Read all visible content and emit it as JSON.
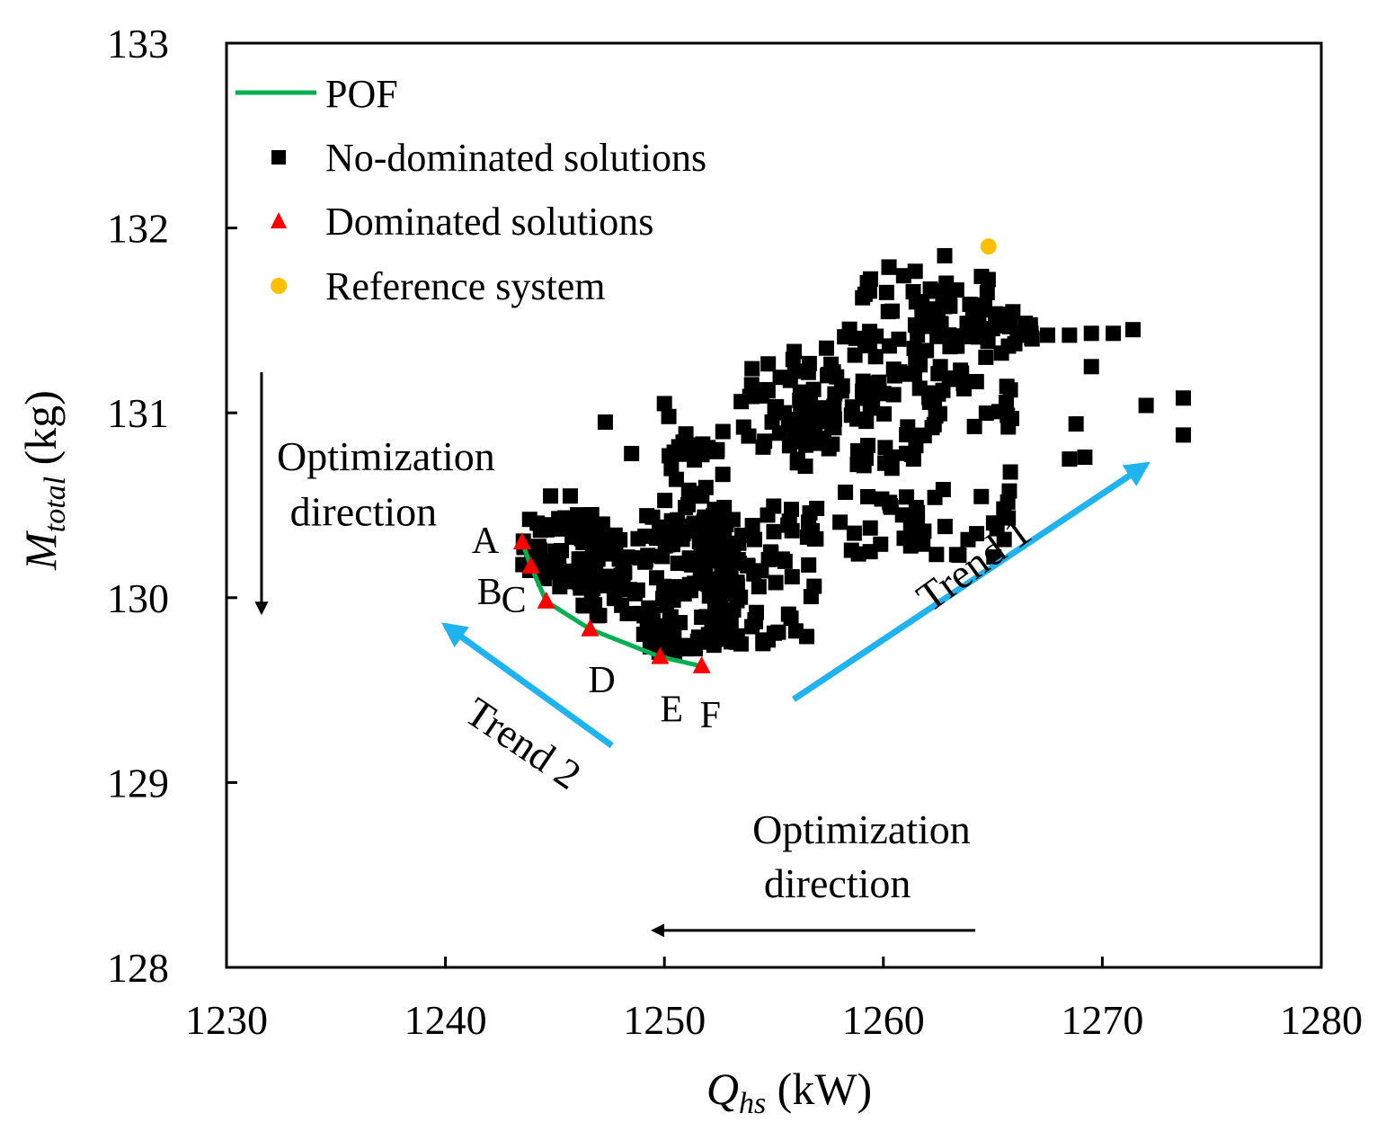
{
  "chart_data": {
    "type": "scatter",
    "xlim": [
      1230,
      1280
    ],
    "ylim": [
      128,
      133
    ],
    "x_ticks": [
      1230,
      1240,
      1250,
      1260,
      1270,
      1280
    ],
    "y_ticks": [
      128,
      129,
      130,
      131,
      132,
      133
    ],
    "x_tick_labels": [
      "1230",
      "1240",
      "1250",
      "1260",
      "1270",
      "1280"
    ],
    "y_tick_labels": [
      "128",
      "129",
      "130",
      "131",
      "132",
      "133"
    ],
    "xlabel": {
      "symbol": "Q",
      "subscript": "hs",
      "unit": " (kW)"
    },
    "ylabel": {
      "symbol": "M",
      "subscript": "total",
      "unit": " (kg)"
    },
    "grid": false,
    "legend_position": "top-left",
    "legend": [
      {
        "label": "POF",
        "marker": "line",
        "color": "#00b050"
      },
      {
        "label": "No-dominated solutions",
        "marker": "square",
        "color": "#000000"
      },
      {
        "label": "Dominated solutions",
        "marker": "triangle",
        "color": "#ff0000"
      },
      {
        "label": "Reference system",
        "marker": "circle",
        "color": "#ffc000"
      }
    ],
    "pof_line": {
      "color": "#00b050",
      "x": [
        1243.5,
        1243.9,
        1244.6,
        1246.6,
        1249.8,
        1251.7
      ],
      "y": [
        130.3,
        130.17,
        129.98,
        129.83,
        129.68,
        129.63
      ]
    },
    "pof_points": {
      "color": "#ff0000",
      "labels": [
        "A",
        "B",
        "C",
        "D",
        "E",
        "F"
      ],
      "x": [
        1243.5,
        1243.9,
        1244.6,
        1246.6,
        1249.8,
        1251.7
      ],
      "y": [
        130.3,
        130.17,
        129.98,
        129.83,
        129.68,
        129.63
      ]
    },
    "reference_point": {
      "color": "#ffc000",
      "x": 1264.8,
      "y": 131.9
    },
    "scatter_color": "#000000",
    "scatter_clusters": [
      {
        "xr": [
          1243.5,
          1247.5
        ],
        "yr": [
          130.05,
          130.45
        ],
        "n": 60
      },
      {
        "xr": [
          1246,
          1249
        ],
        "yr": [
          129.9,
          130.35
        ],
        "n": 50
      },
      {
        "xr": [
          1249,
          1253.5
        ],
        "yr": [
          129.7,
          130.45
        ],
        "n": 130
      },
      {
        "xr": [
          1250,
          1253
        ],
        "yr": [
          130.3,
          130.9
        ],
        "n": 40
      },
      {
        "xr": [
          1253,
          1257
        ],
        "yr": [
          130.0,
          130.5
        ],
        "n": 35
      },
      {
        "xr": [
          1253.5,
          1258
        ],
        "yr": [
          130.8,
          131.35
        ],
        "n": 50
      },
      {
        "xr": [
          1256,
          1262
        ],
        "yr": [
          130.7,
          131.15
        ],
        "n": 50
      },
      {
        "xr": [
          1258,
          1264
        ],
        "yr": [
          131.1,
          131.5
        ],
        "n": 45
      },
      {
        "xr": [
          1259,
          1265
        ],
        "yr": [
          131.4,
          131.8
        ],
        "n": 35
      },
      {
        "xr": [
          1264,
          1267
        ],
        "yr": [
          131.3,
          131.6
        ],
        "n": 25
      },
      {
        "xr": [
          1258,
          1266
        ],
        "yr": [
          130.2,
          130.6
        ],
        "n": 40
      },
      {
        "xr": [
          1262,
          1266
        ],
        "yr": [
          130.9,
          131.2
        ],
        "n": 20
      },
      {
        "xr": [
          1252,
          1256
        ],
        "yr": [
          129.75,
          129.95
        ],
        "n": 15
      }
    ],
    "scatter_points_explicit": {
      "x": [
        1266.5,
        1267.5,
        1268.5,
        1269.5,
        1270.5,
        1271.4,
        1273.7,
        1273.7,
        1272,
        1269.2,
        1268.5,
        1268.8,
        1269.5,
        1265.8,
        1265.5,
        1253.5,
        1254.5,
        1256,
        1256.5,
        1262.8,
        1261.5,
        1260.4,
        1257.4,
        1244.8,
        1245.7,
        1250,
        1250.2,
        1247.3,
        1248.5,
        1252.8,
        1252.2,
        1254.2,
        1262.6
      ],
      "y": [
        131.42,
        131.42,
        131.42,
        131.43,
        131.43,
        131.45,
        131.08,
        130.88,
        131.04,
        130.76,
        130.75,
        130.94,
        131.25,
        130.68,
        130.48,
        129.75,
        129.77,
        129.82,
        129.79,
        131.85,
        131.6,
        131.55,
        131.35,
        130.55,
        130.55,
        131.05,
        130.98,
        130.95,
        130.78,
        130.02,
        130.1,
        129.92,
        131.25
      ]
    },
    "annotations": [
      {
        "text": "Optimization",
        "x": 1232.3,
        "y": 130.69,
        "anchor": "start"
      },
      {
        "text": "direction",
        "x": 1232.9,
        "y": 130.39,
        "anchor": "start"
      },
      {
        "text": "Optimization",
        "x": 1259,
        "y": 128.67,
        "anchor": "middle"
      },
      {
        "text": "direction",
        "x": 1257.9,
        "y": 128.38,
        "anchor": "middle"
      },
      {
        "text": "Trend 1",
        "x": 1264.5,
        "y": 130.12,
        "anchor": "middle",
        "rotate": -36
      },
      {
        "text": "Trend 2",
        "x": 1243.2,
        "y": 129.15,
        "anchor": "middle",
        "rotate": 34
      }
    ],
    "arrows": [
      {
        "x1": 1231.6,
        "y1": 131.22,
        "x2": 1231.6,
        "y2": 129.92,
        "color": "#000000",
        "name": "vertical-optimization-arrow"
      },
      {
        "x1": 1264.2,
        "y1": 128.2,
        "x2": 1249.5,
        "y2": 128.2,
        "color": "#000000",
        "name": "horizontal-optimization-arrow"
      },
      {
        "x1": 1255.9,
        "y1": 129.45,
        "x2": 1272.0,
        "y2": 130.72,
        "color": "#1fb4f0",
        "name": "trend-1-arrow"
      },
      {
        "x1": 1247.6,
        "y1": 129.2,
        "x2": 1240.0,
        "y2": 129.85,
        "color": "#1fb4f0",
        "name": "trend-2-arrow"
      }
    ]
  }
}
